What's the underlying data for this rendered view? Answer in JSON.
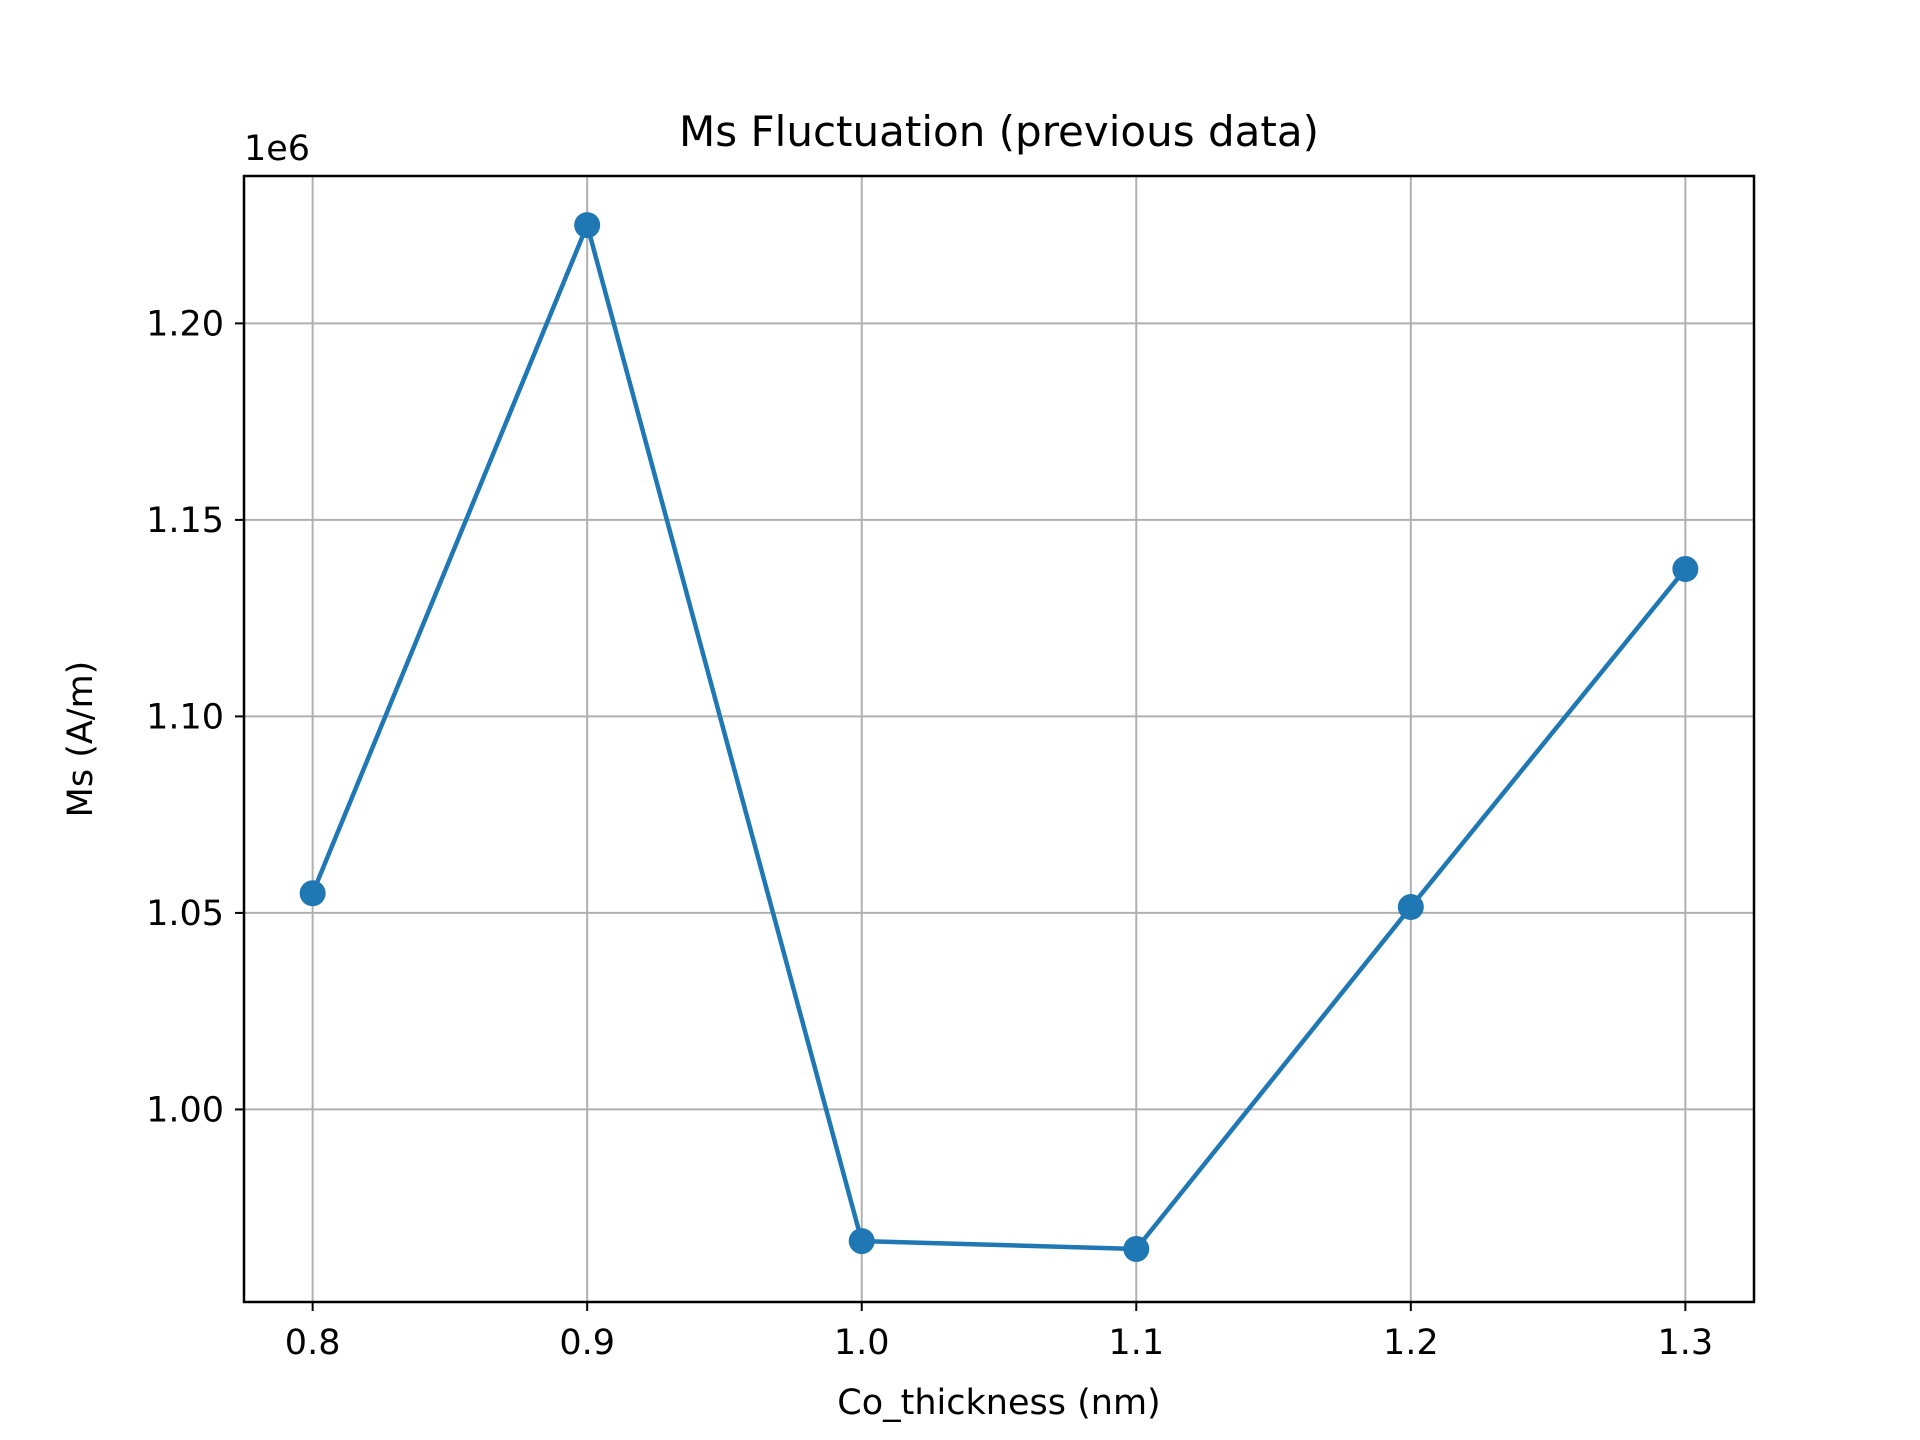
{
  "chart_data": {
    "type": "line",
    "title": "Ms Fluctuation (previous data)",
    "xlabel": "Co_thickness (nm)",
    "ylabel": "Ms (A/m)",
    "y_offset_label": "1e6",
    "x": [
      0.8,
      0.9,
      1.0,
      1.1,
      1.2,
      1.3
    ],
    "series": [
      {
        "values": [
          1055000,
          1225000,
          966500,
          964500,
          1051500,
          1137500
        ],
        "color": "#1f77b4",
        "marker": "circle"
      }
    ],
    "xlim": [
      0.775,
      1.325
    ],
    "ylim": [
      951000,
      1237500
    ],
    "xticks": [
      0.8,
      0.9,
      1.0,
      1.1,
      1.2,
      1.3
    ],
    "xtick_labels": [
      "0.8",
      "0.9",
      "1.0",
      "1.1",
      "1.2",
      "1.3"
    ],
    "yticks": [
      1000000,
      1050000,
      1100000,
      1150000,
      1200000
    ],
    "ytick_labels": [
      "1.00",
      "1.05",
      "1.10",
      "1.15",
      "1.20"
    ],
    "grid": true,
    "legend": "none"
  }
}
